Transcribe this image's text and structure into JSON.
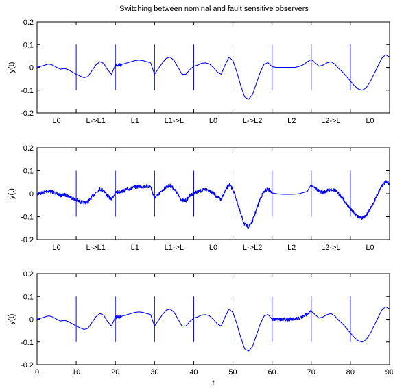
{
  "chart_data": {
    "title": "Switching between nominal and fault sensitive observers",
    "xlabel": "t",
    "series_color": "#0000ff",
    "x_ticks": [
      0,
      10,
      20,
      30,
      40,
      50,
      60,
      70,
      80,
      90
    ],
    "xlim": [
      0,
      90
    ],
    "switch_times": [
      10,
      20,
      30,
      40,
      50,
      60,
      70,
      80
    ],
    "switch_line_range": [
      -0.1,
      0.1
    ],
    "panels": [
      {
        "type": "line",
        "ylabel": "y(t)",
        "ylim": [
          -0.2,
          0.2
        ],
        "y_ticks": [
          "0.2",
          "0.1",
          "0",
          "-0.1",
          "-0.2"
        ],
        "segment_labels": [
          "L0",
          "L->L1",
          "L1",
          "L1->L",
          "L0",
          "L->L2",
          "L2",
          "L2->L",
          "L0"
        ],
        "noisy_intervals": [
          [
            20,
            21.5
          ]
        ],
        "flat_intervals": [
          [
            60,
            70
          ]
        ],
        "x": [
          0,
          1,
          2,
          3,
          4,
          5,
          6,
          7,
          8,
          9,
          10,
          11,
          12,
          13,
          14,
          15,
          16,
          17,
          18,
          19,
          20,
          21,
          22,
          23,
          24,
          25,
          26,
          27,
          28,
          29,
          30,
          31,
          32,
          33,
          34,
          35,
          36,
          37,
          38,
          39,
          40,
          41,
          42,
          43,
          44,
          45,
          46,
          47,
          48,
          49,
          50,
          51,
          52,
          53,
          54,
          55,
          56,
          57,
          58,
          59,
          60,
          61,
          62,
          63,
          64,
          65,
          66,
          67,
          68,
          69,
          70,
          71,
          72,
          73,
          74,
          75,
          76,
          77,
          78,
          79,
          80,
          81,
          82,
          83,
          84,
          85,
          86,
          87,
          88,
          89,
          90
        ],
        "y": [
          0,
          0.005,
          0.01,
          0.015,
          0.01,
          0,
          -0.008,
          -0.005,
          -0.01,
          -0.02,
          -0.03,
          -0.038,
          -0.045,
          -0.04,
          -0.015,
          0.01,
          0.025,
          0.018,
          -0.01,
          -0.03,
          0.01,
          0.01,
          0.015,
          0.02,
          0.025,
          0.03,
          0.032,
          0.03,
          0.025,
          0.02,
          -0.03,
          -0.005,
          0.02,
          0.04,
          0.045,
          0.03,
          0,
          -0.03,
          -0.03,
          -0.01,
          0.005,
          0.01,
          0.018,
          0.02,
          0.015,
          0,
          -0.02,
          -0.03,
          0.01,
          0.045,
          0.03,
          -0.02,
          -0.08,
          -0.13,
          -0.14,
          -0.12,
          -0.07,
          -0.02,
          0.015,
          0.02,
          0.003,
          0,
          0,
          0,
          0,
          0,
          0,
          0.005,
          0.012,
          0.025,
          0.035,
          0.02,
          0.005,
          0.01,
          0.02,
          0.025,
          0.015,
          -0.005,
          -0.02,
          -0.04,
          -0.06,
          -0.08,
          -0.095,
          -0.1,
          -0.09,
          -0.065,
          -0.03,
          0.005,
          0.04,
          0.055,
          0.045
        ]
      },
      {
        "type": "line",
        "ylabel": "y(t)",
        "ylim": [
          -0.2,
          0.2
        ],
        "y_ticks": [
          "0.2",
          "0.1",
          "0",
          "-0.1",
          "-0.2"
        ],
        "segment_labels": [
          "L0",
          "L->L1",
          "L1",
          "L1->L",
          "L0",
          "L->L2",
          "L2",
          "L2->L",
          "L0"
        ],
        "noisy_intervals": [
          [
            0,
            60
          ],
          [
            70,
            90
          ]
        ],
        "flat_intervals": [
          [
            60,
            70
          ]
        ],
        "x": [
          0,
          1,
          2,
          3,
          4,
          5,
          6,
          7,
          8,
          9,
          10,
          11,
          12,
          13,
          14,
          15,
          16,
          17,
          18,
          19,
          20,
          21,
          22,
          23,
          24,
          25,
          26,
          27,
          28,
          29,
          30,
          31,
          32,
          33,
          34,
          35,
          36,
          37,
          38,
          39,
          40,
          41,
          42,
          43,
          44,
          45,
          46,
          47,
          48,
          49,
          50,
          51,
          52,
          53,
          54,
          55,
          56,
          57,
          58,
          59,
          60,
          61,
          62,
          63,
          64,
          65,
          66,
          67,
          68,
          69,
          70,
          71,
          72,
          73,
          74,
          75,
          76,
          77,
          78,
          79,
          80,
          81,
          82,
          83,
          84,
          85,
          86,
          87,
          88,
          89,
          90
        ],
        "y": [
          0,
          0.002,
          0.008,
          0.012,
          0.008,
          0,
          -0.008,
          -0.005,
          -0.01,
          -0.018,
          -0.028,
          -0.035,
          -0.04,
          -0.035,
          -0.015,
          0.005,
          0.02,
          0.015,
          -0.01,
          -0.025,
          0.005,
          0.008,
          0.012,
          0.018,
          0.022,
          0.028,
          0.032,
          0.03,
          0.032,
          0.03,
          -0.02,
          -0.005,
          0.015,
          0.03,
          0.035,
          0.02,
          -0.005,
          -0.03,
          -0.03,
          -0.01,
          0.003,
          0.008,
          0.013,
          0.018,
          0.015,
          0.002,
          -0.015,
          -0.028,
          0.01,
          0.04,
          0.02,
          -0.03,
          -0.09,
          -0.135,
          -0.145,
          -0.12,
          -0.07,
          -0.02,
          0.01,
          0.02,
          0.003,
          0,
          -0.002,
          -0.003,
          -0.003,
          -0.003,
          -0.002,
          0,
          0.005,
          0.01,
          0.04,
          0.025,
          0.01,
          0.005,
          0.012,
          0.02,
          0.015,
          0,
          -0.02,
          -0.045,
          -0.065,
          -0.085,
          -0.1,
          -0.105,
          -0.095,
          -0.07,
          -0.035,
          0,
          0.035,
          0.05,
          0.045
        ]
      },
      {
        "type": "line",
        "ylabel": "y(t)",
        "ylim": [
          -0.2,
          0.2
        ],
        "y_ticks": [
          "0.2",
          "0.1",
          "0",
          "-0.1",
          "-0.2"
        ],
        "segment_labels": [],
        "noisy_intervals": [
          [
            20,
            21.5
          ],
          [
            60,
            70
          ]
        ],
        "flat_intervals": [],
        "x": [
          0,
          1,
          2,
          3,
          4,
          5,
          6,
          7,
          8,
          9,
          10,
          11,
          12,
          13,
          14,
          15,
          16,
          17,
          18,
          19,
          20,
          21,
          22,
          23,
          24,
          25,
          26,
          27,
          28,
          29,
          30,
          31,
          32,
          33,
          34,
          35,
          36,
          37,
          38,
          39,
          40,
          41,
          42,
          43,
          44,
          45,
          46,
          47,
          48,
          49,
          50,
          51,
          52,
          53,
          54,
          55,
          56,
          57,
          58,
          59,
          60,
          61,
          62,
          63,
          64,
          65,
          66,
          67,
          68,
          69,
          70,
          71,
          72,
          73,
          74,
          75,
          76,
          77,
          78,
          79,
          80,
          81,
          82,
          83,
          84,
          85,
          86,
          87,
          88,
          89,
          90
        ],
        "y": [
          0,
          0.005,
          0.01,
          0.015,
          0.01,
          0,
          -0.008,
          -0.005,
          -0.01,
          -0.02,
          -0.03,
          -0.038,
          -0.045,
          -0.04,
          -0.015,
          0.01,
          0.025,
          0.018,
          -0.01,
          -0.03,
          0.01,
          0.01,
          0.015,
          0.02,
          0.025,
          0.03,
          0.032,
          0.03,
          0.025,
          0.02,
          -0.03,
          -0.005,
          0.02,
          0.04,
          0.045,
          0.03,
          0,
          -0.03,
          -0.03,
          -0.01,
          0.005,
          0.01,
          0.018,
          0.02,
          0.015,
          0,
          -0.02,
          -0.03,
          0.01,
          0.045,
          0.03,
          -0.02,
          -0.08,
          -0.13,
          -0.14,
          -0.12,
          -0.07,
          -0.02,
          0.015,
          0.02,
          0,
          0,
          0,
          0,
          0,
          0,
          0,
          0.005,
          0.012,
          0.025,
          0.035,
          0.02,
          0.005,
          0.01,
          0.02,
          0.025,
          0.015,
          -0.005,
          -0.02,
          -0.04,
          -0.06,
          -0.08,
          -0.095,
          -0.1,
          -0.09,
          -0.065,
          -0.03,
          0.005,
          0.04,
          0.055,
          0.045
        ]
      }
    ]
  }
}
